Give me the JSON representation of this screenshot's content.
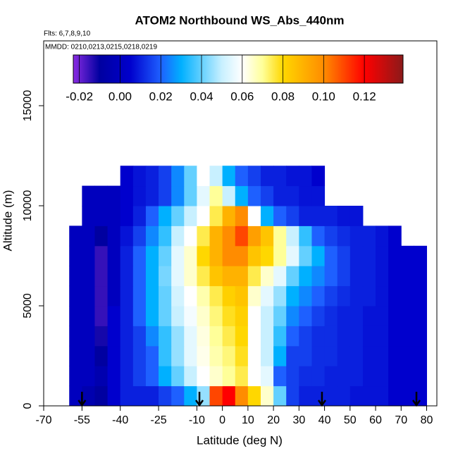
{
  "chart_data": {
    "type": "heatmap",
    "title": "ATOM2 Northbound WS_Abs_440nm",
    "subtitle": "Flts: 6,7,8,9,10",
    "annotation": "MMDD: 0210,0213,0215,0218,0219",
    "x_label": "Latitude (deg N)",
    "y_label": "Altitude (m)",
    "xlim": [
      -70,
      84
    ],
    "ylim": [
      0,
      18240
    ],
    "xticks": [
      -70,
      -55,
      -40,
      -25,
      -10,
      0,
      10,
      20,
      30,
      40,
      50,
      60,
      70,
      80
    ],
    "yticks": [
      0,
      5000,
      10000,
      15000
    ],
    "x_edges": [
      -60,
      -55,
      -50,
      -45,
      -40,
      -35,
      -30,
      -25,
      -20,
      -15,
      -10,
      -5,
      0,
      5,
      10,
      15,
      20,
      25,
      30,
      35,
      40,
      45,
      50,
      55,
      60,
      65,
      70,
      75,
      80
    ],
    "y_edges": [
      0,
      1000,
      2000,
      3000,
      4000,
      5000,
      6000,
      7000,
      8000,
      9000,
      10000,
      11000,
      12000
    ],
    "values": [
      [
        0.0,
        -0.005,
        -0.01,
        0.005,
        0.01,
        0.01,
        0.01,
        0.015,
        0.02,
        0.03,
        0.045,
        0.11,
        0.12,
        0.1,
        0.08,
        0.065,
        0.04,
        0.015,
        0.01,
        0.01,
        0.01,
        0.01,
        0.008,
        0.008,
        0.008,
        0.005,
        0.005,
        0.005
      ],
      [
        0.0,
        0.0,
        -0.005,
        0.005,
        0.01,
        0.015,
        0.02,
        0.03,
        0.04,
        0.05,
        0.06,
        0.065,
        0.07,
        0.075,
        0.06,
        0.055,
        0.02,
        0.015,
        0.012,
        0.012,
        0.01,
        0.01,
        0.01,
        0.008,
        0.008,
        0.005,
        0.005,
        0.005
      ],
      [
        0.0,
        0.0,
        -0.01,
        0.005,
        0.01,
        0.015,
        0.02,
        0.035,
        0.045,
        0.055,
        0.062,
        0.068,
        0.072,
        0.078,
        0.06,
        0.05,
        0.03,
        0.015,
        0.015,
        0.012,
        0.012,
        0.01,
        0.01,
        0.008,
        0.008,
        0.005,
        0.005,
        0.005
      ],
      [
        0.0,
        0.0,
        -0.012,
        0.005,
        0.01,
        0.015,
        0.025,
        0.035,
        0.045,
        0.055,
        0.063,
        0.07,
        0.075,
        0.08,
        0.06,
        0.05,
        0.035,
        0.02,
        0.015,
        0.012,
        0.012,
        0.01,
        0.01,
        0.008,
        0.008,
        0.005,
        0.005,
        0.005
      ],
      [
        0.0,
        0.0,
        -0.015,
        0.005,
        0.01,
        0.02,
        0.03,
        0.04,
        0.05,
        0.058,
        0.065,
        0.072,
        0.078,
        0.082,
        0.06,
        0.05,
        0.04,
        0.025,
        0.02,
        0.015,
        0.012,
        0.01,
        0.01,
        0.008,
        0.008,
        0.005,
        0.005,
        0.005
      ],
      [
        0.0,
        0.0,
        -0.015,
        0.0,
        0.01,
        0.02,
        0.03,
        0.04,
        0.052,
        0.06,
        0.068,
        0.075,
        0.082,
        0.085,
        0.065,
        0.055,
        0.045,
        0.03,
        0.025,
        0.02,
        0.015,
        0.012,
        0.01,
        0.01,
        0.008,
        0.005,
        0.005,
        0.005
      ],
      [
        0.0,
        0.0,
        -0.015,
        0.0,
        0.01,
        0.02,
        0.03,
        0.042,
        0.055,
        0.065,
        0.075,
        0.085,
        0.09,
        0.09,
        0.075,
        0.065,
        0.055,
        0.04,
        0.03,
        0.025,
        0.02,
        0.015,
        0.01,
        0.01,
        0.008,
        0.005,
        0.005,
        0.005
      ],
      [
        0.0,
        0.0,
        -0.015,
        0.0,
        0.01,
        0.02,
        0.03,
        0.04,
        0.055,
        0.065,
        0.08,
        0.09,
        0.1,
        0.1,
        0.085,
        0.08,
        0.07,
        0.055,
        0.04,
        0.03,
        0.02,
        0.015,
        0.01,
        0.01,
        0.008,
        0.005,
        0.005,
        0.005
      ],
      [
        0.0,
        0.0,
        -0.01,
        0.0,
        0.008,
        0.015,
        0.025,
        0.035,
        0.05,
        0.06,
        0.075,
        0.09,
        0.1,
        0.11,
        0.095,
        0.085,
        0.07,
        0.05,
        0.035,
        0.02,
        0.015,
        0.012,
        0.01,
        0.01,
        0.008,
        0.005,
        null,
        null
      ],
      [
        null,
        0.0,
        0.0,
        0.0,
        0.005,
        0.01,
        0.02,
        0.03,
        0.04,
        0.05,
        0.06,
        0.075,
        0.09,
        0.1,
        0.06,
        0.03,
        0.02,
        0.015,
        0.01,
        0.01,
        0.01,
        0.008,
        0.008,
        null,
        null,
        null,
        null,
        null
      ],
      [
        null,
        0.0,
        0.0,
        0.0,
        0.005,
        0.008,
        0.01,
        0.015,
        0.025,
        0.04,
        0.055,
        0.07,
        0.05,
        0.03,
        0.02,
        0.015,
        0.01,
        0.01,
        0.008,
        0.008,
        null,
        null,
        null,
        null,
        null,
        null,
        null,
        null
      ],
      [
        null,
        null,
        null,
        null,
        0.005,
        0.008,
        0.01,
        0.015,
        0.025,
        0.04,
        0.06,
        0.05,
        0.03,
        0.02,
        0.015,
        0.01,
        0.01,
        0.008,
        0.008,
        0.005,
        null,
        null,
        null,
        null,
        null,
        null,
        null,
        null
      ]
    ],
    "clim": [
      -0.023,
      0.139
    ],
    "cticks": [
      {
        "value": -0.02,
        "label": "-0.02"
      },
      {
        "value": 0,
        "label": "0.00"
      },
      {
        "value": 0.02,
        "label": "0.02"
      },
      {
        "value": 0.04,
        "label": "0.04"
      },
      {
        "value": 0.06,
        "label": "0.06"
      },
      {
        "value": 0.08,
        "label": "0.08"
      },
      {
        "value": 0.1,
        "label": "0.10"
      },
      {
        "value": 0.12,
        "label": "0.12"
      }
    ],
    "color_stops": [
      [
        -0.023,
        "#8a2be2"
      ],
      [
        -0.01,
        "#0000a0"
      ],
      [
        0.005,
        "#0000cd"
      ],
      [
        0.02,
        "#1e60ff"
      ],
      [
        0.03,
        "#00b0ff"
      ],
      [
        0.05,
        "#c8f0ff"
      ],
      [
        0.06,
        "#ffffff"
      ],
      [
        0.07,
        "#ffff99"
      ],
      [
        0.08,
        "#ffd700"
      ],
      [
        0.1,
        "#ff8c00"
      ],
      [
        0.12,
        "#ff0000"
      ],
      [
        0.139,
        "#8b1a1a"
      ]
    ],
    "markers_x": [
      -55,
      -9,
      39,
      76
    ]
  }
}
